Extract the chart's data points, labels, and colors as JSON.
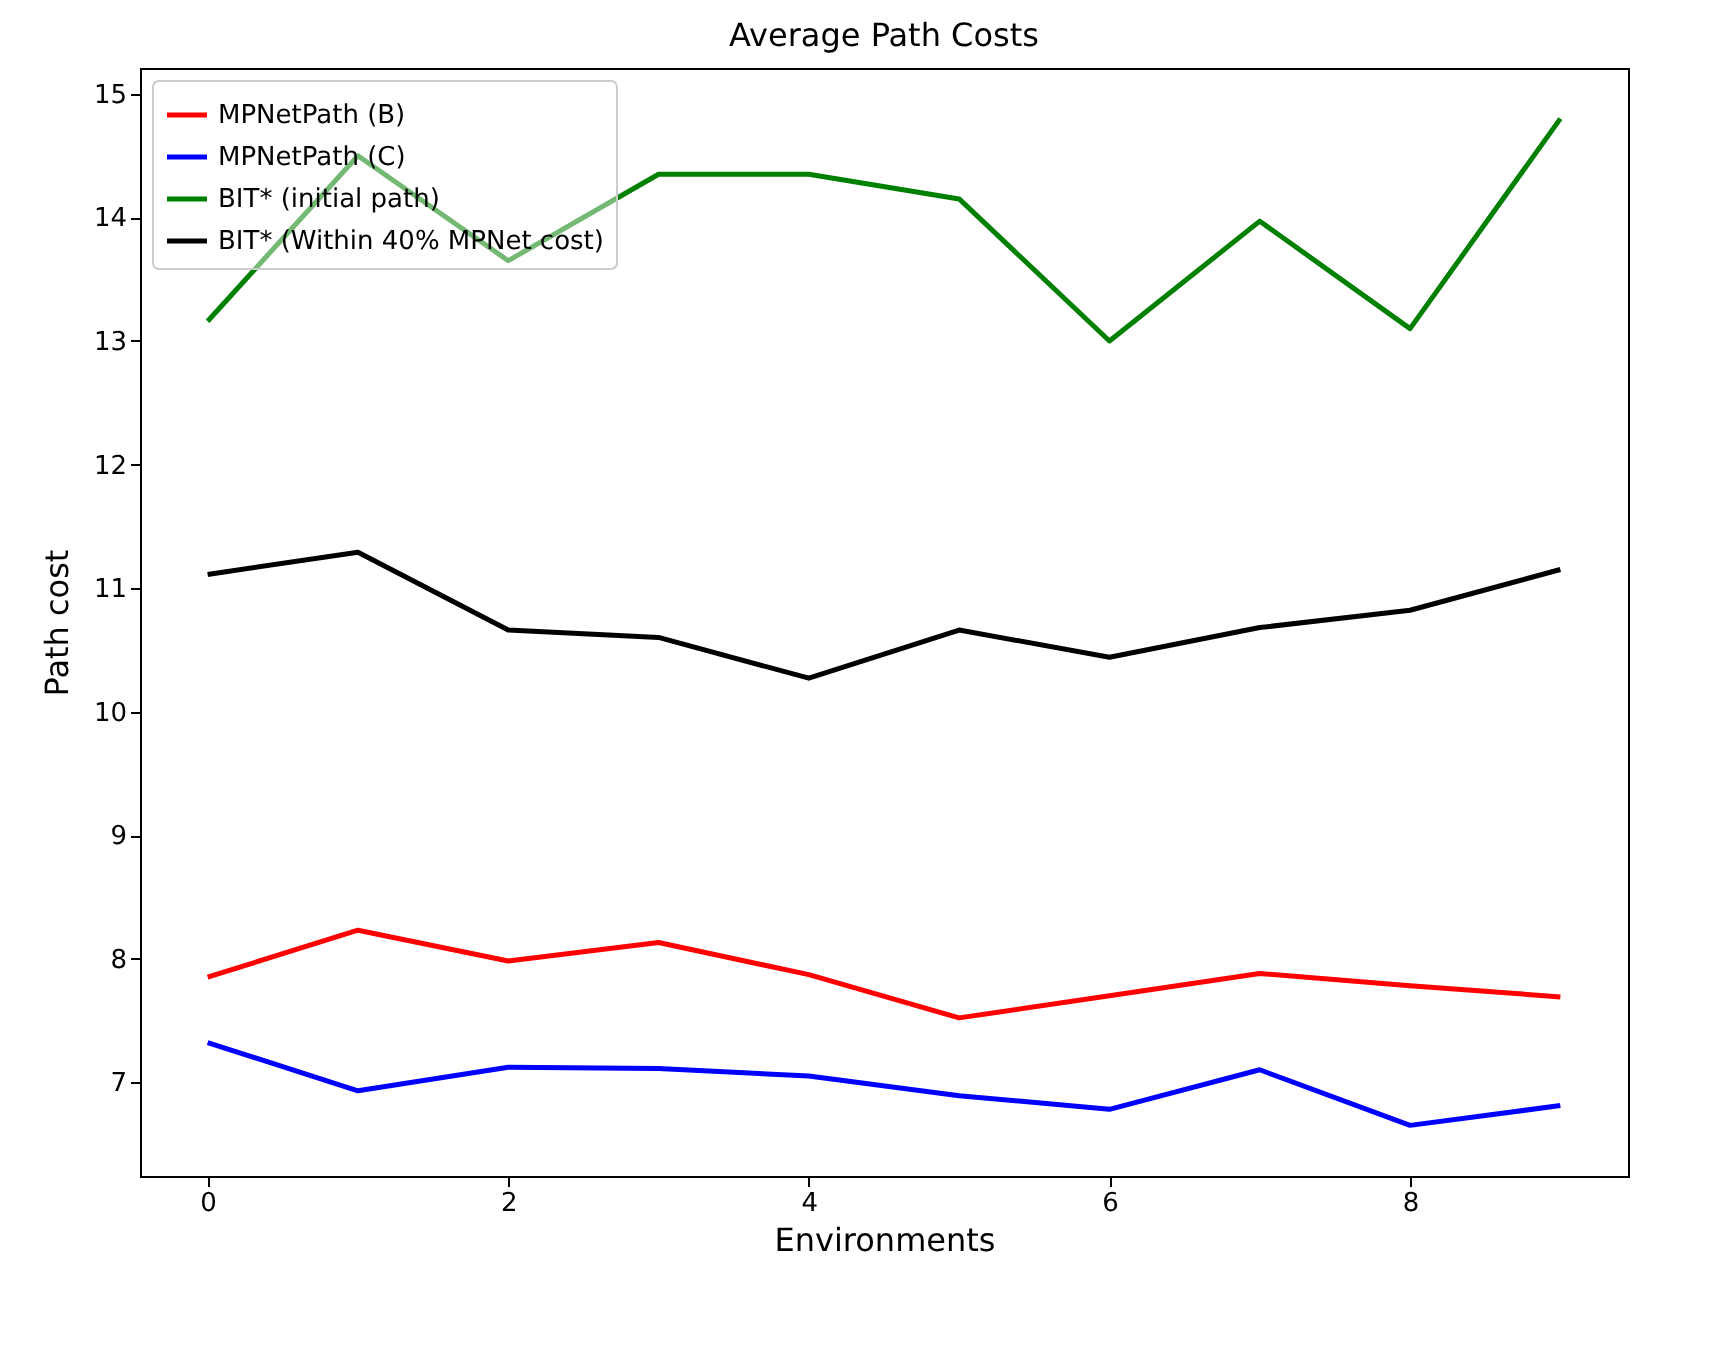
{
  "chart_data": {
    "type": "line",
    "title": "Average Path Costs",
    "xlabel": "Environments",
    "ylabel": "Path cost",
    "x": [
      0,
      1,
      2,
      3,
      4,
      5,
      6,
      7,
      8,
      9
    ],
    "xlim": [
      -0.45,
      9.45
    ],
    "xticks": [
      0,
      2,
      4,
      6,
      8
    ],
    "ylim": [
      6.24,
      15.21
    ],
    "yticks": [
      7,
      8,
      9,
      10,
      11,
      12,
      13,
      14,
      15
    ],
    "grid": false,
    "legend": "top left",
    "marker": "none",
    "line_style": "solid",
    "series": [
      {
        "name": "MPNetPath (B)",
        "color": "#ff0000",
        "values": [
          7.85,
          8.23,
          7.98,
          8.13,
          7.87,
          7.52,
          7.7,
          7.88,
          7.78,
          7.69
        ]
      },
      {
        "name": "MPNetPath (C)",
        "color": "#0000ff",
        "values": [
          7.32,
          6.93,
          7.12,
          7.11,
          7.05,
          6.89,
          6.78,
          7.1,
          6.65,
          6.81
        ]
      },
      {
        "name": "BIT* (initial path)",
        "color": "#008000",
        "values": [
          13.16,
          14.5,
          13.65,
          14.35,
          14.35,
          14.15,
          13.0,
          13.97,
          13.1,
          14.8
        ]
      },
      {
        "name": "BIT* (Within 40% MPNet cost)",
        "color": "#000000",
        "values": [
          11.11,
          11.29,
          10.66,
          10.6,
          10.27,
          10.66,
          10.44,
          10.68,
          10.82,
          11.15
        ]
      }
    ]
  }
}
